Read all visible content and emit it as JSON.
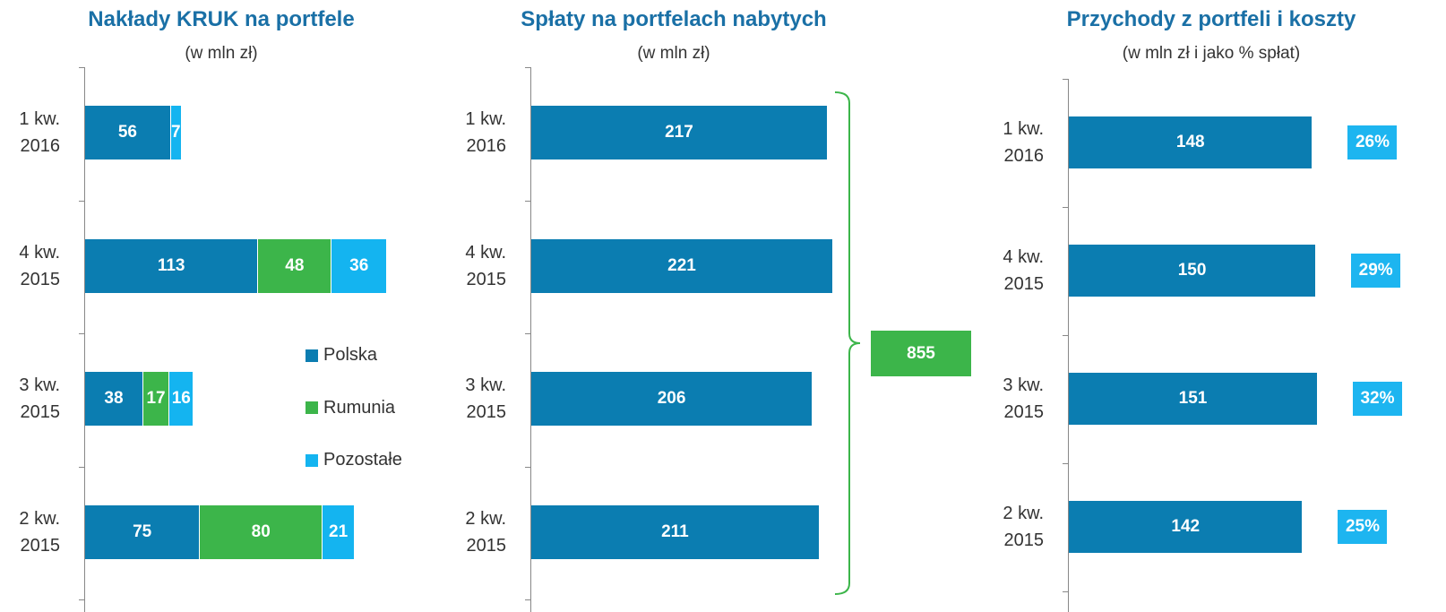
{
  "chart_data": [
    {
      "type": "bar",
      "orientation": "horizontal",
      "stacked": true,
      "title": "Nakłady KRUK na portfele",
      "subtitle": "(w mln zł)",
      "categories": [
        "1 kw. 2016",
        "4 kw. 2015",
        "3 kw. 2015",
        "2 kw. 2015"
      ],
      "series": [
        {
          "name": "Polska",
          "color": "#0b7db1",
          "values": [
            56,
            113,
            38,
            75
          ]
        },
        {
          "name": "Rumunia",
          "color": "#3cb54a",
          "values": [
            null,
            48,
            17,
            80
          ]
        },
        {
          "name": "Pozostałe",
          "color": "#14b4f0",
          "values": [
            7,
            36,
            16,
            21
          ]
        }
      ]
    },
    {
      "type": "bar",
      "orientation": "horizontal",
      "title": "Spłaty na portfelach nabytych",
      "subtitle": "(w mln zł)",
      "categories": [
        "1 kw. 2016",
        "4 kw. 2015",
        "3 kw. 2015",
        "2 kw. 2015"
      ],
      "values": [
        217,
        221,
        206,
        211
      ],
      "color": "#0b7db1",
      "total": 855,
      "total_color": "#3cb54a"
    },
    {
      "type": "bar",
      "orientation": "horizontal",
      "title": "Przychody z portfeli  i koszty",
      "subtitle": "(w mln zł i jako % spłat)",
      "categories": [
        "1 kw. 2016",
        "4 kw. 2015",
        "3 kw. 2015",
        "2 kw. 2015"
      ],
      "values": [
        148,
        150,
        151,
        142
      ],
      "color": "#0b7db1",
      "shares": {
        "values": [
          26,
          29,
          32,
          25
        ],
        "value_labels": [
          "26%",
          "29%",
          "32%",
          "25%"
        ],
        "color": "#1db5f0"
      }
    }
  ]
}
